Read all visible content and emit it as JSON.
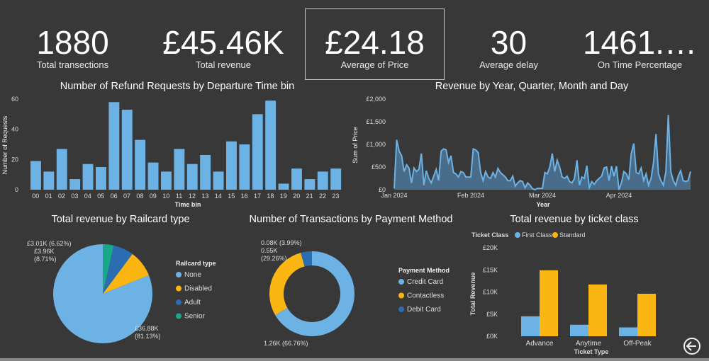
{
  "kpis": [
    {
      "value": "1880",
      "label": "Total transections"
    },
    {
      "value": "£45.46K",
      "label": "Total revenue"
    },
    {
      "value": "£24.18",
      "label": "Average of Price"
    },
    {
      "value": "30",
      "label": "Average delay"
    },
    {
      "value": "1461.…",
      "label": "On Time Percentage"
    }
  ],
  "colors": {
    "blue": "#6cb2e4",
    "yellow": "#fbb614",
    "dark_blue": "#2a6db0",
    "teal": "#1aa88a",
    "background": "#383838"
  },
  "chart_data": [
    {
      "type": "bar",
      "title": "Number of Refund Requests by Departure Time bin",
      "xlabel": "Time bin",
      "ylabel": "Number of Requests",
      "ylim": [
        0,
        60
      ],
      "yticks": [
        "0",
        "20",
        "40",
        "60"
      ],
      "categories": [
        "00",
        "01",
        "02",
        "03",
        "04",
        "05",
        "06",
        "07",
        "08",
        "09",
        "10",
        "11",
        "12",
        "13",
        "14",
        "15",
        "16",
        "17",
        "18",
        "19",
        "20",
        "21",
        "22",
        "23"
      ],
      "values": [
        19,
        12,
        27,
        7,
        17,
        15,
        58,
        53,
        33,
        18,
        12,
        27,
        17,
        23,
        12,
        32,
        30,
        50,
        59,
        4,
        14,
        7,
        12,
        14
      ]
    },
    {
      "type": "area",
      "title": "Revenue by Year, Quarter, Month and Day",
      "xlabel": "Year",
      "ylabel": "Sum of Price",
      "ylim": [
        0,
        2000
      ],
      "yticks": [
        "£0",
        "£500",
        "£1,000",
        "£1,500",
        "£2,000"
      ],
      "xticks": [
        "Jan 2024",
        "Feb 2024",
        "Mar 2024",
        "Apr 2024"
      ],
      "x_start": "2024-01-01",
      "values": [
        30,
        1100,
        850,
        750,
        400,
        550,
        480,
        150,
        480,
        400,
        450,
        800,
        100,
        420,
        250,
        150,
        300,
        450,
        200,
        850,
        900,
        880,
        600,
        750,
        380,
        350,
        280,
        400,
        380,
        280,
        280,
        280,
        900,
        880,
        820,
        380,
        200,
        400,
        280,
        250,
        380,
        280,
        470,
        380,
        330,
        280,
        200,
        200,
        300,
        80,
        150,
        200,
        180,
        40,
        150,
        100,
        20,
        0,
        30,
        30,
        30,
        380,
        350,
        500,
        800,
        400,
        650,
        500,
        280,
        250,
        300,
        180,
        150,
        250,
        650,
        100,
        280,
        250,
        530,
        50,
        180,
        120,
        200,
        250,
        300,
        480,
        500,
        200,
        520,
        300,
        520,
        0,
        150,
        400,
        350,
        220,
        800,
        1020,
        380,
        350,
        480,
        200,
        350,
        100,
        250,
        600,
        1230,
        350,
        200,
        100,
        400,
        1650,
        400,
        200,
        100,
        300,
        420,
        200,
        180,
        200,
        400
      ]
    },
    {
      "type": "pie",
      "title": "Total revenue by Railcard type",
      "legend_title": "Railcard type",
      "legend": "right",
      "slices": [
        {
          "name": "None",
          "value": 36.88,
          "pct": 81.13,
          "label": "£36.88K\n(81.13%)"
        },
        {
          "name": "Disabled",
          "value": 3.96,
          "pct": 8.71,
          "label": "£3.96K\n(8.71%)"
        },
        {
          "name": "Adult",
          "value": 3.01,
          "pct": 6.62,
          "label": "£3.01K (6.62%)"
        },
        {
          "name": "Senior",
          "value": 1.61,
          "pct": 3.54,
          "label": ""
        }
      ]
    },
    {
      "type": "pie",
      "donut": true,
      "title": "Number of Transactions by Payment Method",
      "legend_title": "Payment Method",
      "legend": "right",
      "slices": [
        {
          "name": "Credit Card",
          "value": 1.26,
          "pct": 66.76,
          "label": "1.26K (66.76%)"
        },
        {
          "name": "Contactless",
          "value": 0.55,
          "pct": 29.26,
          "label": "0.55K\n(29.26%)"
        },
        {
          "name": "Debit Card",
          "value": 0.08,
          "pct": 3.99,
          "label": "0.08K (3.99%)"
        }
      ]
    },
    {
      "type": "bar",
      "title": "Total revenue by ticket class",
      "xlabel": "Ticket Type",
      "ylabel": "Total Revenue",
      "legend_title": "Ticket Class",
      "legend": "top-left",
      "ylim": [
        0,
        20000
      ],
      "yticks": [
        "£0K",
        "£5K",
        "£10K",
        "£15K",
        "£20K"
      ],
      "categories": [
        "Advance",
        "Anytime",
        "Off-Peak"
      ],
      "series": [
        {
          "name": "First Class",
          "values": [
            4500,
            2600,
            2000
          ]
        },
        {
          "name": "Standard",
          "values": [
            14900,
            11700,
            9600
          ]
        }
      ]
    }
  ]
}
